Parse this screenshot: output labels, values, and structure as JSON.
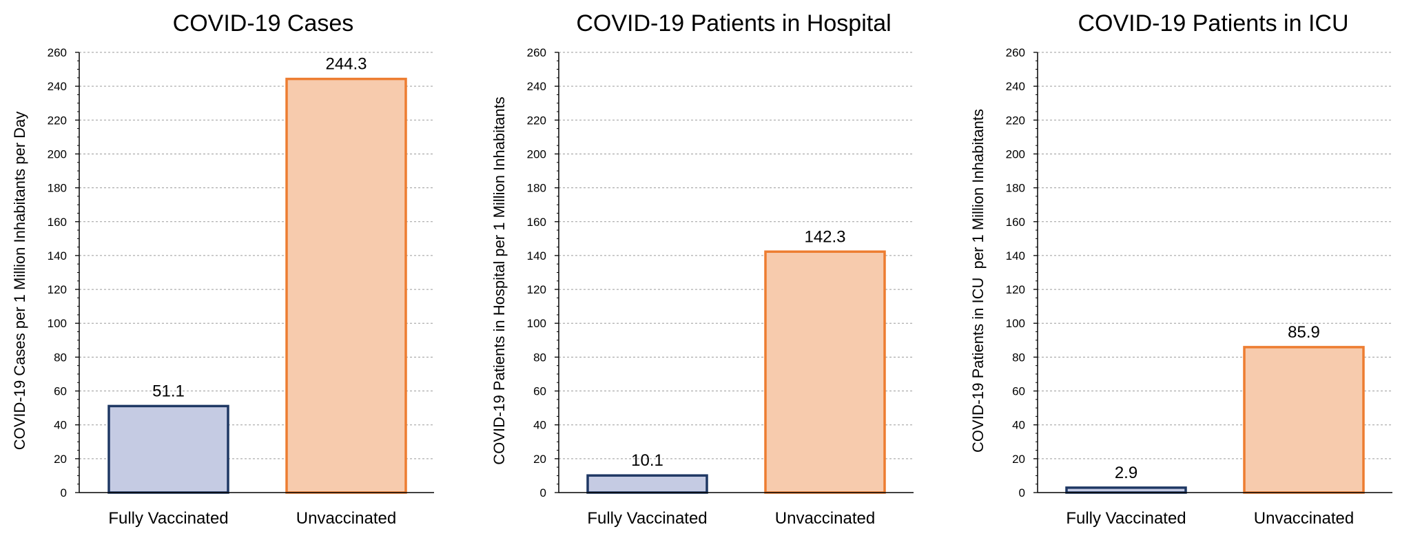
{
  "chart_data": [
    {
      "type": "bar",
      "title": "COVID-19 Cases",
      "ylabel": "COVID-19 Cases per 1 Million Inhabitants per Day",
      "xlabel": "",
      "categories": [
        "Fully Vaccinated",
        "Unvaccinated"
      ],
      "values": [
        51.1,
        244.3
      ],
      "value_labels": [
        "51.1",
        "244.3"
      ],
      "ylim": [
        0,
        260
      ],
      "yticks": [
        0,
        20,
        40,
        60,
        80,
        100,
        120,
        140,
        160,
        180,
        200,
        220,
        240,
        260
      ],
      "grid": "horizontal-dashed",
      "legend": "none"
    },
    {
      "type": "bar",
      "title": "COVID-19 Patients in Hospital",
      "ylabel": "COVID-19 Patients in Hospital per 1 Million Inhabitants",
      "xlabel": "",
      "categories": [
        "Fully Vaccinated",
        "Unvaccinated"
      ],
      "values": [
        10.1,
        142.3
      ],
      "value_labels": [
        "10.1",
        "142.3"
      ],
      "ylim": [
        0,
        260
      ],
      "yticks": [
        0,
        20,
        40,
        60,
        80,
        100,
        120,
        140,
        160,
        180,
        200,
        220,
        240,
        260
      ],
      "grid": "horizontal-dashed",
      "legend": "none"
    },
    {
      "type": "bar",
      "title": "COVID-19 Patients in ICU",
      "ylabel": "COVID-19 Patients in ICU  per 1 Million Inhabitants",
      "xlabel": "",
      "categories": [
        "Fully Vaccinated",
        "Unvaccinated"
      ],
      "values": [
        2.9,
        85.9
      ],
      "value_labels": [
        "2.9",
        "85.9"
      ],
      "ylim": [
        0,
        260
      ],
      "yticks": [
        0,
        20,
        40,
        60,
        80,
        100,
        120,
        140,
        160,
        180,
        200,
        220,
        240,
        260
      ],
      "grid": "horizontal-dashed",
      "legend": "none"
    }
  ],
  "colors": {
    "vaccinated_fill": "#c5cbe3",
    "vaccinated_stroke": "#1f3864",
    "unvaccinated_fill": "#f7cbad",
    "unvaccinated_stroke": "#ed7d31",
    "grid": "#9a9a9a",
    "axis": "#000000"
  }
}
